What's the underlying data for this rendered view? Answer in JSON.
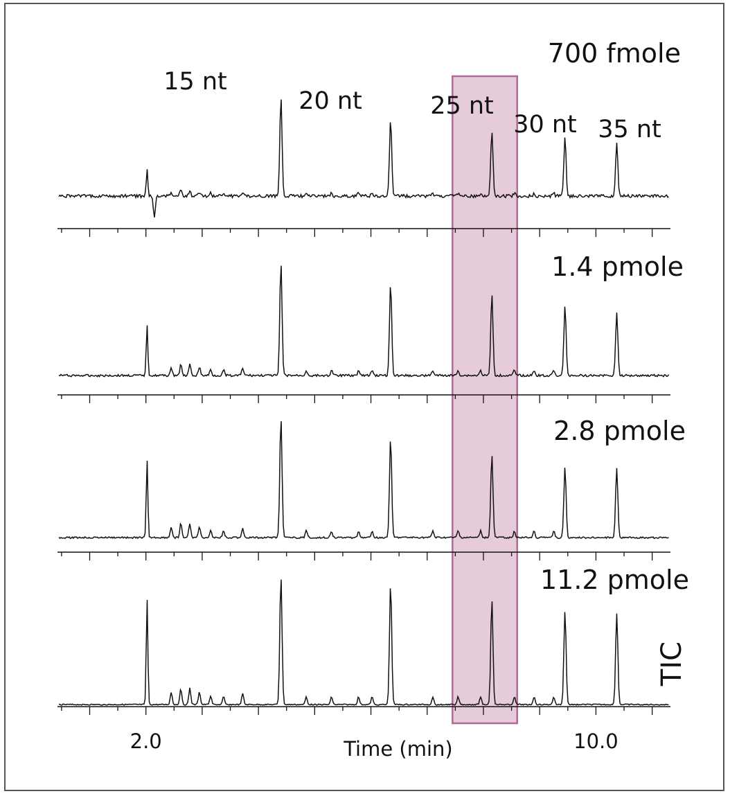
{
  "chart_data": {
    "type": "line",
    "subtype": "stacked chromatograms",
    "xlabel": "Time (min)",
    "ylabel": "TIC",
    "x_tick_labels": [
      {
        "value": 2.0,
        "label": "2.0"
      },
      {
        "value": 10.0,
        "label": "10.0"
      }
    ],
    "xlim": [
      0.6,
      11.3
    ],
    "grid": false,
    "peak_labels": [
      {
        "label": "15 nt",
        "time": 4.4
      },
      {
        "label": "20 nt",
        "time": 6.35
      },
      {
        "label": "25 nt",
        "time": 8.15
      },
      {
        "label": "30 nt",
        "time": 9.45
      },
      {
        "label": "35 nt",
        "time": 10.37
      }
    ],
    "highlight": {
      "x_start": 7.45,
      "x_end": 8.6,
      "color": "#c88fb0"
    },
    "series": [
      {
        "name": "700 fmole",
        "peaks": [
          {
            "time": 4.4,
            "height": 1.0
          },
          {
            "time": 6.35,
            "height": 0.78
          },
          {
            "time": 8.15,
            "height": 0.66
          },
          {
            "time": 9.45,
            "height": 0.59
          },
          {
            "time": 10.37,
            "height": 0.53
          }
        ]
      },
      {
        "name": "1.4 pmole",
        "peaks": [
          {
            "time": 4.4,
            "height": 1.0
          },
          {
            "time": 6.35,
            "height": 0.82
          },
          {
            "time": 8.15,
            "height": 0.72
          },
          {
            "time": 9.45,
            "height": 0.62
          },
          {
            "time": 10.37,
            "height": 0.56
          }
        ]
      },
      {
        "name": "2.8 pmole",
        "peaks": [
          {
            "time": 4.4,
            "height": 1.0
          },
          {
            "time": 6.35,
            "height": 0.83
          },
          {
            "time": 8.15,
            "height": 0.69
          },
          {
            "time": 9.45,
            "height": 0.59
          },
          {
            "time": 10.37,
            "height": 0.58
          }
        ]
      },
      {
        "name": "11.2 pmole",
        "peaks": [
          {
            "time": 4.4,
            "height": 1.0
          },
          {
            "time": 6.35,
            "height": 0.94
          },
          {
            "time": 8.15,
            "height": 0.82
          },
          {
            "time": 9.45,
            "height": 0.73
          },
          {
            "time": 10.37,
            "height": 0.71
          }
        ]
      }
    ]
  }
}
